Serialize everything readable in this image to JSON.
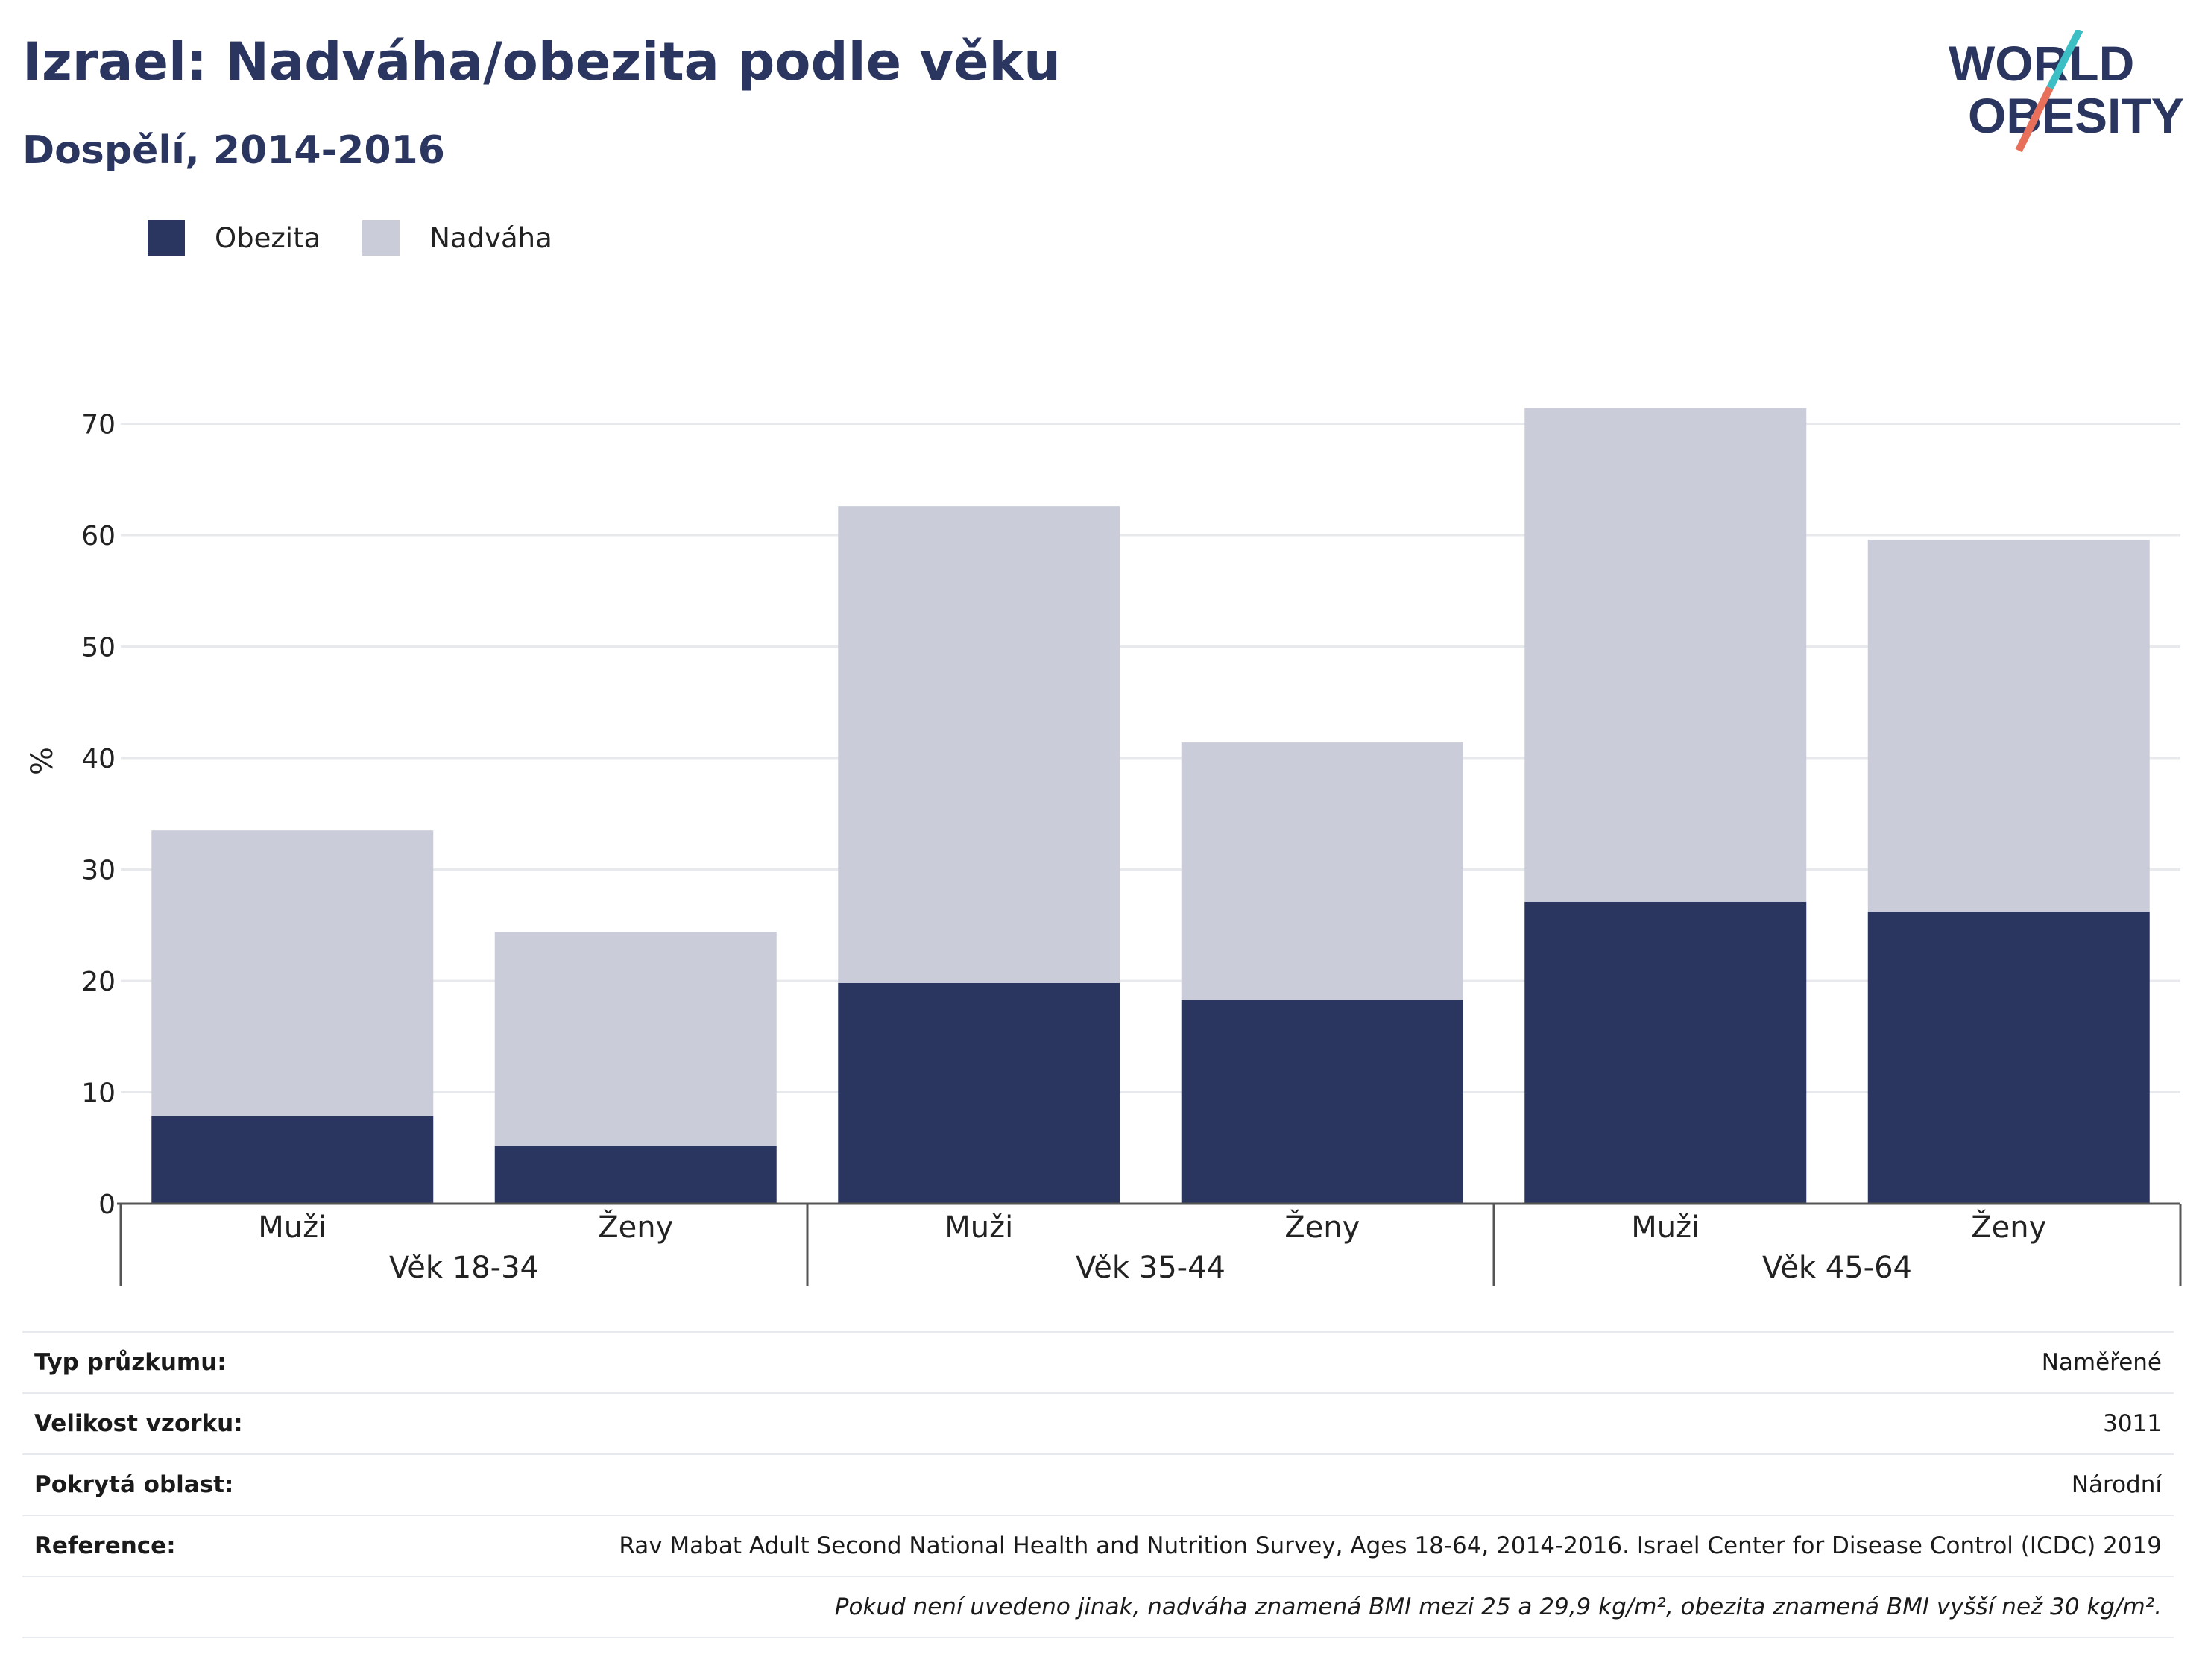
{
  "header": {
    "title": "Izrael: Nadváha/obezita podle věku",
    "subtitle": "Dospělí, 2014-2016"
  },
  "logo": {
    "line1": "WORLD",
    "line2": "OBESITY",
    "accent_colors": [
      "#3bbfc4",
      "#e8705a"
    ]
  },
  "legend": [
    {
      "label": "Obezita",
      "color": "#2a365f"
    },
    {
      "label": "Nadváha",
      "color": "#cacdd9"
    }
  ],
  "chart_data": {
    "type": "bar",
    "stacked": true,
    "ylabel": "%",
    "ylim": [
      0,
      75
    ],
    "yticks": [
      0,
      10,
      20,
      30,
      40,
      50,
      60,
      70
    ],
    "grid": true,
    "legend_position": "top-left",
    "groups": [
      {
        "label": "Věk 18-34",
        "categories": [
          "Muži",
          "Ženy"
        ]
      },
      {
        "label": "Věk 35-44",
        "categories": [
          "Muži",
          "Ženy"
        ]
      },
      {
        "label": "Věk 45-64",
        "categories": [
          "Muži",
          "Ženy"
        ]
      }
    ],
    "series": [
      {
        "name": "Obezita",
        "color": "#2a365f",
        "values": [
          7.9,
          5.2,
          19.8,
          18.3,
          27.1,
          26.2
        ]
      },
      {
        "name": "Nadváha",
        "color": "#cacdd9",
        "values": [
          25.6,
          19.2,
          42.8,
          23.1,
          44.3,
          33.4
        ]
      }
    ]
  },
  "info": {
    "rows": [
      {
        "label": "Typ průzkumu:",
        "value": "Naměřené"
      },
      {
        "label": "Velikost vzorku:",
        "value": "3011"
      },
      {
        "label": "Pokrytá oblast:",
        "value": "Národní"
      },
      {
        "label": "Reference:",
        "value": "Rav Mabat Adult Second National Health and Nutrition Survey, Ages 18-64, 2014-2016. Israel Center for Disease Control (ICDC) 2019"
      }
    ],
    "note": "Pokud není uvedeno jinak, nadváha znamená BMI mezi 25 a 29,9 kg/m², obezita znamená BMI vyšší než 30 kg/m²."
  }
}
